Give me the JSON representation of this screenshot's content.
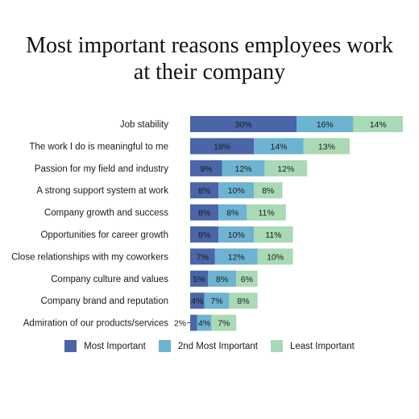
{
  "chart_data": {
    "type": "bar",
    "orientation": "horizontal",
    "stacked": true,
    "title": "Most important reasons employees work\nat their company",
    "categories": [
      "Job stability",
      "The work I do is meaningful to me",
      "Passion for my field and industry",
      "A strong support system at work",
      "Company growth and success",
      "Opportunities for career growth",
      "Close relationships with my coworkers",
      "Company culture and values",
      "Company brand and reputation",
      "Admiration of our products/services"
    ],
    "series": [
      {
        "name": "Most Important",
        "color": "#4a65a8",
        "values": [
          30,
          18,
          9,
          8,
          8,
          8,
          7,
          5,
          4,
          2
        ]
      },
      {
        "name": "2nd Most Important",
        "color": "#6eb3d1",
        "values": [
          16,
          14,
          12,
          10,
          8,
          10,
          12,
          8,
          7,
          4
        ]
      },
      {
        "name": "Least Important",
        "color": "#a9d9b5",
        "values": [
          14,
          13,
          12,
          8,
          11,
          11,
          10,
          6,
          8,
          7
        ]
      }
    ],
    "value_suffix": "%",
    "xlim": [
      0,
      60
    ],
    "grid": false,
    "legend_position": "bottom"
  }
}
